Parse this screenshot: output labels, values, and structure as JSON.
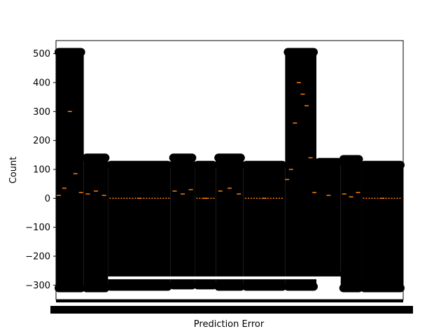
{
  "chart_data": {
    "type": "box",
    "title": "",
    "xlabel": "Prediction Error",
    "ylabel": "Count",
    "ylim": [
      -350,
      545
    ],
    "yticks": [
      -300,
      -200,
      -100,
      0,
      100,
      200,
      300,
      400,
      500
    ],
    "xticks": "dense, overlapping unreadable labels",
    "grid": false,
    "legend": "none",
    "colors": {
      "box": "#000000",
      "median": "#ff7f0e",
      "flier": "#000000",
      "background": "#ffffff"
    },
    "regions": [
      {
        "x_range": [
          0.0,
          0.08
        ],
        "box": [
          -310,
          505
        ],
        "medians": [
          10,
          35,
          300,
          85,
          20
        ]
      },
      {
        "x_range": [
          0.08,
          0.15
        ],
        "box": [
          -310,
          140
        ],
        "medians": [
          15,
          25,
          10
        ]
      },
      {
        "x_range": [
          0.15,
          0.33
        ],
        "box": [
          -305,
          115
        ],
        "medians": [
          0
        ]
      },
      {
        "x_range": [
          0.33,
          0.4
        ],
        "box": [
          -300,
          140
        ],
        "medians": [
          25,
          15,
          30
        ]
      },
      {
        "x_range": [
          0.4,
          0.46
        ],
        "box": [
          -300,
          115
        ],
        "medians": [
          0
        ]
      },
      {
        "x_range": [
          0.46,
          0.54
        ],
        "box": [
          -305,
          140
        ],
        "medians": [
          25,
          35,
          15
        ]
      },
      {
        "x_range": [
          0.54,
          0.66
        ],
        "box": [
          -305,
          115
        ],
        "medians": [
          0
        ]
      },
      {
        "x_range": [
          0.66,
          0.75
        ],
        "box": [
          -305,
          505
        ],
        "medians": [
          65,
          100,
          260,
          400,
          360,
          320,
          140,
          20
        ]
      },
      {
        "x_range": [
          0.75,
          0.82
        ],
        "box": [
          -265,
          125
        ],
        "medians": [
          10
        ]
      },
      {
        "x_range": [
          0.82,
          0.88
        ],
        "box": [
          -310,
          135
        ],
        "medians": [
          15,
          5,
          20
        ]
      },
      {
        "x_range": [
          0.88,
          1.0
        ],
        "box": [
          -310,
          115
        ],
        "medians": [
          0
        ]
      }
    ]
  },
  "labels": {
    "xlabel": "Prediction Error",
    "ylabel": "Count",
    "ytick_labels": [
      "−300",
      "−200",
      "−100",
      "0",
      "100",
      "200",
      "300",
      "400",
      "500"
    ]
  }
}
